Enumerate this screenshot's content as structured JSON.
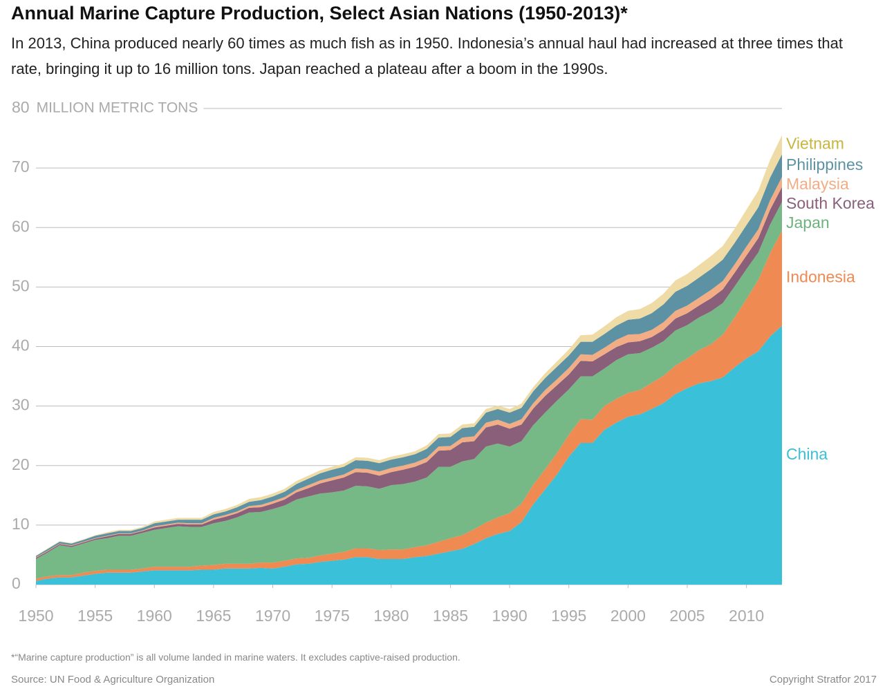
{
  "chart_data": {
    "type": "stacked-area",
    "title": "Annual Marine Capture Production, Select Asian Nations (1950-2013)*",
    "subtitle": "In 2013, China produced nearly 60 times as much fish as in 1950. Indonesia’s annual haul had increased at three times that rate, bringing it up to 16 million tons. Japan reached a plateau after a boom in the 1990s.",
    "ylabel": "MILLION METRIC TONS",
    "footnote": "*“Marine capture production” is all volume landed in marine waters. It excludes captive-raised production.",
    "source": "Source: UN Food & Agriculture Organization",
    "copyright": "Copyright Stratfor 2017",
    "x": [
      1950,
      1951,
      1952,
      1953,
      1954,
      1955,
      1956,
      1957,
      1958,
      1959,
      1960,
      1961,
      1962,
      1963,
      1964,
      1965,
      1966,
      1967,
      1968,
      1969,
      1970,
      1971,
      1972,
      1973,
      1974,
      1975,
      1976,
      1977,
      1978,
      1979,
      1980,
      1981,
      1982,
      1983,
      1984,
      1985,
      1986,
      1987,
      1988,
      1989,
      1990,
      1991,
      1992,
      1993,
      1994,
      1995,
      1996,
      1997,
      1998,
      1999,
      2000,
      2001,
      2002,
      2003,
      2004,
      2005,
      2006,
      2007,
      2008,
      2009,
      2010,
      2011,
      2012,
      2013
    ],
    "xlim": [
      1950,
      2013
    ],
    "xticks": [
      1950,
      1955,
      1960,
      1965,
      1970,
      1975,
      1980,
      1985,
      1990,
      1995,
      2000,
      2005,
      2010
    ],
    "ylim": [
      0,
      80
    ],
    "yticks": [
      0,
      10,
      20,
      30,
      40,
      50,
      60,
      70,
      80
    ],
    "grid": true,
    "series": [
      {
        "name": "China",
        "color": "#3ac0d8",
        "label_color": "#3ac0d8",
        "values": [
          0.6,
          1.0,
          1.2,
          1.2,
          1.5,
          1.8,
          2.0,
          2.0,
          2.0,
          2.2,
          2.4,
          2.4,
          2.4,
          2.4,
          2.5,
          2.5,
          2.7,
          2.7,
          2.7,
          2.8,
          2.7,
          3.0,
          3.4,
          3.5,
          3.8,
          4.0,
          4.2,
          4.6,
          4.6,
          4.3,
          4.3,
          4.3,
          4.6,
          4.8,
          5.2,
          5.6,
          6.0,
          6.8,
          7.8,
          8.5,
          9.0,
          10.5,
          13.5,
          16.0,
          18.5,
          21.5,
          23.8,
          23.8,
          26.0,
          27.2,
          28.2,
          28.6,
          29.5,
          30.5,
          32.0,
          33.0,
          33.8,
          34.2,
          34.8,
          36.5,
          38.0,
          39.2,
          41.7,
          43.5
        ]
      },
      {
        "name": "Indonesia",
        "color": "#ef8a52",
        "label_color": "#ef8a52",
        "values": [
          0.4,
          0.4,
          0.4,
          0.4,
          0.5,
          0.5,
          0.5,
          0.5,
          0.5,
          0.5,
          0.6,
          0.6,
          0.6,
          0.6,
          0.7,
          0.8,
          0.8,
          0.8,
          0.8,
          0.9,
          1.0,
          1.0,
          1.0,
          1.0,
          1.1,
          1.2,
          1.3,
          1.5,
          1.5,
          1.5,
          1.6,
          1.6,
          1.7,
          1.8,
          2.0,
          2.2,
          2.3,
          2.5,
          2.6,
          2.8,
          3.0,
          3.1,
          3.3,
          3.4,
          3.6,
          3.7,
          4.0,
          3.9,
          4.0,
          4.0,
          4.0,
          4.1,
          4.4,
          4.6,
          4.8,
          5.0,
          5.6,
          6.2,
          7.2,
          8.4,
          10.0,
          12.0,
          14.0,
          16.0
        ]
      },
      {
        "name": "Japan",
        "color": "#76b886",
        "label_color": "#6db27f",
        "values": [
          3.3,
          4.0,
          5.0,
          4.7,
          4.9,
          5.2,
          5.3,
          5.7,
          5.7,
          6.0,
          6.2,
          6.5,
          6.8,
          6.7,
          6.5,
          7.0,
          7.2,
          7.8,
          8.6,
          8.5,
          9.0,
          9.3,
          9.9,
          10.3,
          10.4,
          10.3,
          10.3,
          10.5,
          10.4,
          10.3,
          10.8,
          11.0,
          11.0,
          11.4,
          12.6,
          12.0,
          12.4,
          11.8,
          12.8,
          12.4,
          11.2,
          10.5,
          10.0,
          9.5,
          8.8,
          7.6,
          7.2,
          7.3,
          6.3,
          6.5,
          6.5,
          6.2,
          5.9,
          5.8,
          5.9,
          5.6,
          5.5,
          5.5,
          5.3,
          5.2,
          5.0,
          4.6,
          4.8,
          4.8
        ]
      },
      {
        "name": "South Korea",
        "color": "#8a5f79",
        "label_color": "#8a5f79",
        "values": [
          0.2,
          0.2,
          0.2,
          0.2,
          0.2,
          0.2,
          0.3,
          0.3,
          0.3,
          0.3,
          0.4,
          0.4,
          0.4,
          0.4,
          0.4,
          0.6,
          0.7,
          0.7,
          0.8,
          0.8,
          0.9,
          1.0,
          1.2,
          1.4,
          1.7,
          2.0,
          2.2,
          2.3,
          2.3,
          2.2,
          2.2,
          2.4,
          2.5,
          2.6,
          2.7,
          2.8,
          3.2,
          3.0,
          3.2,
          3.2,
          3.0,
          2.8,
          2.8,
          2.8,
          2.6,
          2.5,
          2.6,
          2.5,
          2.4,
          2.2,
          2.0,
          2.0,
          1.8,
          1.9,
          2.0,
          2.0,
          2.0,
          2.2,
          2.3,
          2.3,
          2.3,
          2.4,
          2.5,
          2.5
        ]
      },
      {
        "name": "Malaysia",
        "color": "#f2ad85",
        "label_color": "#f2ad85",
        "values": [
          0.1,
          0.1,
          0.1,
          0.1,
          0.1,
          0.1,
          0.1,
          0.1,
          0.1,
          0.1,
          0.2,
          0.2,
          0.2,
          0.2,
          0.2,
          0.3,
          0.3,
          0.3,
          0.3,
          0.4,
          0.4,
          0.4,
          0.4,
          0.5,
          0.5,
          0.5,
          0.5,
          0.6,
          0.6,
          0.7,
          0.7,
          0.7,
          0.7,
          0.7,
          0.7,
          0.7,
          0.8,
          0.8,
          0.8,
          0.8,
          0.8,
          0.9,
          0.9,
          1.0,
          1.0,
          1.1,
          1.1,
          1.1,
          1.1,
          1.2,
          1.3,
          1.2,
          1.2,
          1.3,
          1.3,
          1.3,
          1.3,
          1.4,
          1.4,
          1.4,
          1.5,
          1.5,
          1.6,
          1.7
        ]
      },
      {
        "name": "Philippines",
        "color": "#5c92a3",
        "label_color": "#5c92a3",
        "values": [
          0.2,
          0.3,
          0.3,
          0.3,
          0.3,
          0.4,
          0.4,
          0.4,
          0.4,
          0.4,
          0.5,
          0.5,
          0.5,
          0.6,
          0.6,
          0.6,
          0.6,
          0.7,
          0.7,
          0.8,
          0.8,
          0.9,
          1.0,
          1.1,
          1.2,
          1.3,
          1.3,
          1.4,
          1.4,
          1.4,
          1.4,
          1.4,
          1.4,
          1.5,
          1.5,
          1.5,
          1.6,
          1.6,
          1.7,
          1.8,
          1.9,
          1.9,
          2.0,
          2.0,
          2.1,
          2.1,
          2.1,
          2.2,
          2.3,
          2.4,
          2.5,
          2.6,
          2.8,
          3.0,
          3.2,
          3.3,
          3.4,
          3.5,
          3.6,
          3.6,
          3.6,
          3.7,
          3.8,
          3.8
        ]
      },
      {
        "name": "Vietnam",
        "color": "#eedba6",
        "label_color": "#c9b53e",
        "values": [
          0.1,
          0.1,
          0.1,
          0.1,
          0.1,
          0.1,
          0.2,
          0.2,
          0.2,
          0.2,
          0.3,
          0.3,
          0.3,
          0.3,
          0.3,
          0.4,
          0.4,
          0.4,
          0.5,
          0.5,
          0.5,
          0.5,
          0.5,
          0.5,
          0.5,
          0.5,
          0.5,
          0.5,
          0.5,
          0.5,
          0.5,
          0.5,
          0.5,
          0.6,
          0.6,
          0.6,
          0.6,
          0.6,
          0.6,
          0.6,
          0.6,
          0.7,
          0.7,
          0.8,
          0.9,
          1.0,
          1.1,
          1.2,
          1.3,
          1.4,
          1.5,
          1.6,
          1.7,
          1.8,
          1.9,
          2.0,
          2.1,
          2.2,
          2.3,
          2.4,
          2.6,
          2.8,
          3.0,
          3.2
        ]
      }
    ]
  }
}
